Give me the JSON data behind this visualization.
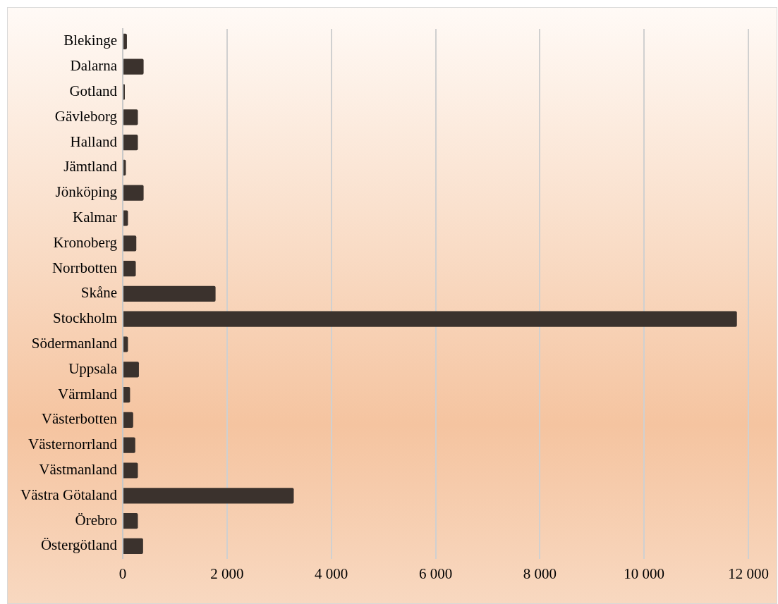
{
  "chart_data": {
    "type": "bar",
    "orientation": "horizontal",
    "categories": [
      "Blekinge",
      "Dalarna",
      "Gotland",
      "Gävleborg",
      "Halland",
      "Jämtland",
      "Jönköping",
      "Kalmar",
      "Kronoberg",
      "Norrbotten",
      "Skåne",
      "Stockholm",
      "Södermanland",
      "Uppsala",
      "Värmland",
      "Västerbotten",
      "Västernorrland",
      "Västmanland",
      "Västra Götaland",
      "Örebro",
      "Östergötland"
    ],
    "values": [
      80,
      400,
      40,
      290,
      290,
      60,
      400,
      100,
      260,
      250,
      1780,
      11780,
      100,
      310,
      140,
      200,
      240,
      290,
      3280,
      290,
      390
    ],
    "color": "#3b322d",
    "xlim": [
      0,
      12000
    ],
    "xticks": [
      0,
      {
        "value": 2000,
        "label": "2 000"
      },
      {
        "value": 4000,
        "label": "4 000"
      },
      {
        "value": 6000,
        "label": "6 000"
      },
      {
        "value": 8000,
        "label": "8 000"
      },
      {
        "value": 10000,
        "label": "10 000"
      },
      {
        "value": 12000,
        "label": "12 000"
      }
    ],
    "grid": "x",
    "legend": false
  }
}
